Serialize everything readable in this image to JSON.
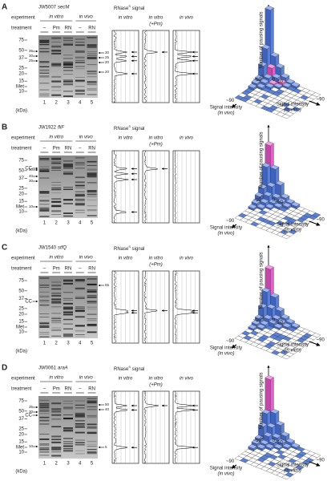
{
  "panels": [
    {
      "letter": "A",
      "strain": "JW5007",
      "gene": "secM",
      "experiment_label": "experiment",
      "treatment_label": "treatment",
      "experiments": [
        "in vitro",
        "in vivo"
      ],
      "treatments": [
        "–",
        "Pm",
        "RN",
        "–",
        "RN"
      ],
      "markers": [
        75,
        50,
        37,
        25,
        20,
        15,
        10
      ],
      "met_label": "Met",
      "marker_unit": "(kDa)",
      "lanes": [
        1,
        2,
        3,
        4,
        5
      ],
      "band_labels_left": [
        "35",
        "30",
        "25"
      ],
      "band_labels_right": [
        "30",
        "25",
        "20",
        "20"
      ],
      "signal_title": {
        "main": "RNase",
        "sup": "S",
        "rest": " signal"
      },
      "trace_titles": [
        [
          "in vitro"
        ],
        [
          "in vitro",
          "(+Pm)"
        ],
        [
          "in vivo"
        ]
      ],
      "histogram": {
        "y_axis": "Number of pausing signals",
        "vivo_axis": [
          "Signal intensity",
          "(in vivo)"
        ],
        "vitro_axis": [
          "Signal intensity",
          "(in vitro)"
        ],
        "vivo_ticks": [
          "0",
          "~10",
          "~90"
        ],
        "vitro_ticks": [
          "0",
          "~10",
          "~90"
        ]
      }
    },
    {
      "letter": "B",
      "strain": "JW1922",
      "gene": "fliF",
      "experiment_label": "experiment",
      "treatment_label": "treatment",
      "experiments": [
        "in vitro",
        "in vivo"
      ],
      "treatments": [
        "–",
        "Pm",
        "RN",
        "–",
        "RN"
      ],
      "markers": [
        75,
        50,
        37,
        25,
        20,
        15,
        10
      ],
      "met_label": "Met",
      "cc_label": "CC",
      "marker_unit": "(kDa)",
      "lanes": [
        1,
        2,
        3,
        4,
        5
      ],
      "band_labels_left": [
        "50",
        "40",
        "30",
        "10"
      ],
      "band_labels_right": [],
      "signal_title": {
        "main": "RNase",
        "sup": "S",
        "rest": " signal"
      },
      "trace_titles": [
        [
          "in vitro"
        ],
        [
          "in vitro",
          "(+Pm)"
        ],
        [
          "in vivo"
        ]
      ],
      "histogram": {
        "y_axis": "Number of pausing signals",
        "vivo_axis": [
          "Signal intensity",
          "(in vivo)"
        ],
        "vitro_axis": [
          "Signal intensity",
          "(in vitro)"
        ],
        "vivo_ticks": [
          "0",
          "~10",
          "~90"
        ],
        "vitro_ticks": [
          "0",
          "~10",
          "~90"
        ]
      }
    },
    {
      "letter": "C",
      "strain": "JW1540",
      "gene": "stfQ",
      "experiment_label": "experiment",
      "treatment_label": "treatment",
      "experiments": [
        "in vitro",
        "in vivo"
      ],
      "treatments": [
        "–",
        "Pm",
        "RN",
        "–",
        "RN"
      ],
      "markers": [
        75,
        50,
        37,
        25,
        20,
        15,
        10
      ],
      "met_label": "Met",
      "cc_label": "CC",
      "marker_unit": "(kDa)",
      "lanes": [
        1,
        2,
        3,
        4,
        5
      ],
      "band_labels_left": [],
      "band_labels_right": [
        "65"
      ],
      "signal_title": {
        "main": "RNase",
        "sup": "S",
        "rest": " signal"
      },
      "trace_titles": [
        [
          "in vitro"
        ],
        [
          "in vitro",
          "(+Pm)"
        ],
        [
          "in vivo"
        ]
      ],
      "histogram": {
        "y_axis": "Number of pausing signals",
        "vivo_axis": [
          "Signal intensity",
          "(in vivo)"
        ],
        "vitro_axis": [
          "Signal intensity",
          "(in vitro)"
        ],
        "vivo_ticks": [
          "0",
          "~10",
          "~90"
        ],
        "vitro_ticks": [
          "0",
          "~10",
          "~90"
        ]
      }
    },
    {
      "letter": "D",
      "strain": "JW0061",
      "gene": "araA",
      "experiment_label": "experiment",
      "treatment_label": "treatment",
      "experiments": [
        "in vitro",
        "in vivo"
      ],
      "treatments": [
        "–",
        "Pm",
        "RN",
        "–",
        "RN"
      ],
      "markers": [
        75,
        50,
        37,
        25,
        20,
        15,
        10
      ],
      "met_label": "Met",
      "cc_label": "CC",
      "marker_unit": "(kDa)",
      "lanes": [
        1,
        2,
        3,
        4,
        5
      ],
      "band_labels_left": [
        "35",
        "30",
        "10"
      ],
      "band_labels_right": [
        "50",
        "40",
        "5"
      ],
      "signal_title": {
        "main": "RNase",
        "sup": "S",
        "rest": " signal"
      },
      "trace_titles": [
        [
          "in vitro"
        ],
        [
          "in vitro",
          "(+Pm)"
        ],
        [
          "in vivo"
        ]
      ],
      "histogram": {
        "y_axis": "Number of pausing signals",
        "vivo_axis": [
          "Signal intensity",
          "(in vivo)"
        ],
        "vitro_axis": [
          "Signal intensity",
          "(in vitro)"
        ],
        "vivo_ticks": [
          "0",
          "~10",
          "~90"
        ],
        "vitro_ticks": [
          "0",
          "~10",
          "~90"
        ]
      }
    }
  ]
}
